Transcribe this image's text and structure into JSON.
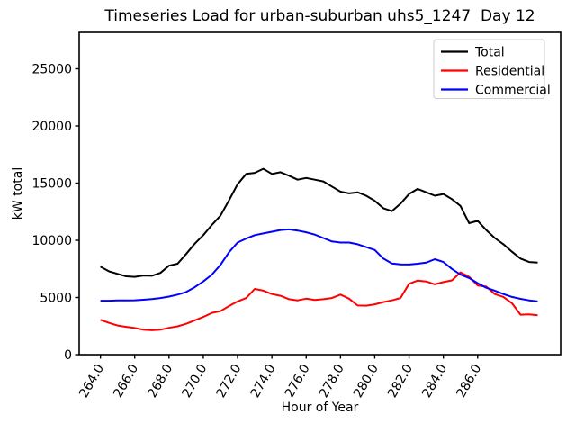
{
  "chart_data": {
    "type": "line",
    "title": "Timeseries Load for urban-suburban uhs5_1247  Day 12",
    "xlabel": "Hour of Year",
    "ylabel": "kW total",
    "grid": false,
    "legend_position": "upper right",
    "x_tick_rotation": 60,
    "xlim": [
      262.76,
      290.84
    ],
    "ylim": [
      0,
      28190
    ],
    "x_tick_labels": [
      "264.0",
      "266.0",
      "268.0",
      "270.0",
      "272.0",
      "274.0",
      "276.0",
      "278.0",
      "280.0",
      "282.0",
      "284.0",
      "286.0"
    ],
    "x_tick_values": [
      264,
      266,
      268,
      270,
      272,
      274,
      276,
      278,
      280,
      282,
      284,
      286
    ],
    "y_tick_labels": [
      "0",
      "5000",
      "10000",
      "15000",
      "20000",
      "25000"
    ],
    "y_tick_values": [
      0,
      5000,
      10000,
      15000,
      20000,
      25000
    ],
    "x": [
      264.0,
      264.5,
      265.0,
      265.5,
      266.0,
      266.5,
      267.0,
      267.5,
      268.0,
      268.5,
      269.0,
      269.5,
      270.0,
      270.5,
      271.0,
      271.5,
      272.0,
      272.5,
      273.0,
      273.5,
      274.0,
      274.5,
      275.0,
      275.5,
      276.0,
      276.5,
      277.0,
      277.5,
      278.0,
      278.5,
      279.0,
      279.5,
      280.0,
      280.5,
      281.0,
      281.5,
      282.0,
      282.5,
      283.0,
      283.5,
      284.0,
      284.5,
      285.0,
      285.5,
      286.0,
      286.5,
      287.0,
      287.5,
      288.0,
      288.5,
      289.0,
      289.5
    ],
    "series": [
      {
        "name": "Total",
        "color": "#000000",
        "values": [
          7700,
          7280,
          7060,
          6850,
          6800,
          6920,
          6900,
          7150,
          7780,
          7950,
          8800,
          9700,
          10450,
          11350,
          12150,
          13500,
          14900,
          15800,
          15900,
          16250,
          15800,
          15950,
          15650,
          15300,
          15450,
          15300,
          15150,
          14700,
          14250,
          14100,
          14200,
          13900,
          13450,
          12800,
          12550,
          13200,
          14050,
          14500,
          14200,
          13900,
          14050,
          13600,
          13000,
          11500,
          11700,
          10900,
          10200,
          9650,
          9000,
          8400,
          8100,
          8050
        ]
      },
      {
        "name": "Residential",
        "color": "#ff0000",
        "values": [
          3050,
          2780,
          2550,
          2430,
          2330,
          2180,
          2130,
          2180,
          2350,
          2480,
          2700,
          3000,
          3300,
          3650,
          3800,
          4250,
          4650,
          4950,
          5750,
          5600,
          5300,
          5150,
          4850,
          4750,
          4900,
          4780,
          4850,
          4950,
          5250,
          4900,
          4300,
          4280,
          4400,
          4600,
          4750,
          4950,
          6200,
          6480,
          6400,
          6150,
          6350,
          6500,
          7200,
          6800,
          6050,
          5950,
          5300,
          5050,
          4500,
          3500,
          3520,
          3450
        ]
      },
      {
        "name": "Commercial",
        "color": "#0000ff",
        "values": [
          4720,
          4720,
          4740,
          4750,
          4760,
          4800,
          4860,
          4950,
          5080,
          5250,
          5480,
          5900,
          6400,
          7000,
          7850,
          8950,
          9800,
          10150,
          10450,
          10600,
          10750,
          10900,
          10950,
          10850,
          10700,
          10500,
          10200,
          9900,
          9800,
          9800,
          9650,
          9400,
          9150,
          8400,
          7980,
          7900,
          7880,
          7950,
          8050,
          8350,
          8100,
          7500,
          7000,
          6700,
          6250,
          5850,
          5600,
          5300,
          5050,
          4880,
          4750,
          4650
        ]
      }
    ]
  }
}
